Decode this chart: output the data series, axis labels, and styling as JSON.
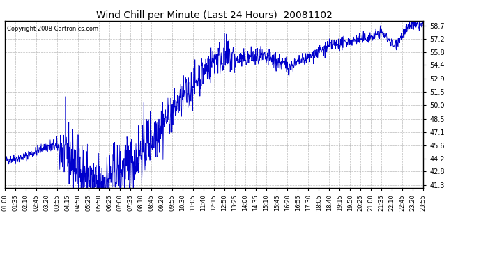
{
  "title": "Wind Chill per Minute (Last 24 Hours)  20081102",
  "copyright": "Copyright 2008 Cartronics.com",
  "line_color": "#0000cc",
  "bg_color": "#ffffff",
  "grid_color": "#bbbbbb",
  "yticks": [
    41.3,
    42.8,
    44.2,
    45.6,
    47.1,
    48.5,
    50.0,
    51.5,
    52.9,
    54.4,
    55.8,
    57.2,
    58.7
  ],
  "ylim": [
    41.0,
    59.2
  ],
  "xtick_labels": [
    "01:00",
    "01:35",
    "02:10",
    "02:45",
    "03:20",
    "03:55",
    "04:15",
    "04:50",
    "05:25",
    "05:50",
    "06:25",
    "07:00",
    "07:35",
    "08:10",
    "08:45",
    "09:20",
    "09:55",
    "10:30",
    "11:05",
    "11:40",
    "12:15",
    "12:50",
    "13:25",
    "14:00",
    "14:35",
    "15:10",
    "15:45",
    "16:20",
    "16:55",
    "17:30",
    "18:05",
    "18:40",
    "19:15",
    "19:50",
    "20:25",
    "21:00",
    "21:35",
    "22:10",
    "22:45",
    "23:20",
    "23:55"
  ]
}
